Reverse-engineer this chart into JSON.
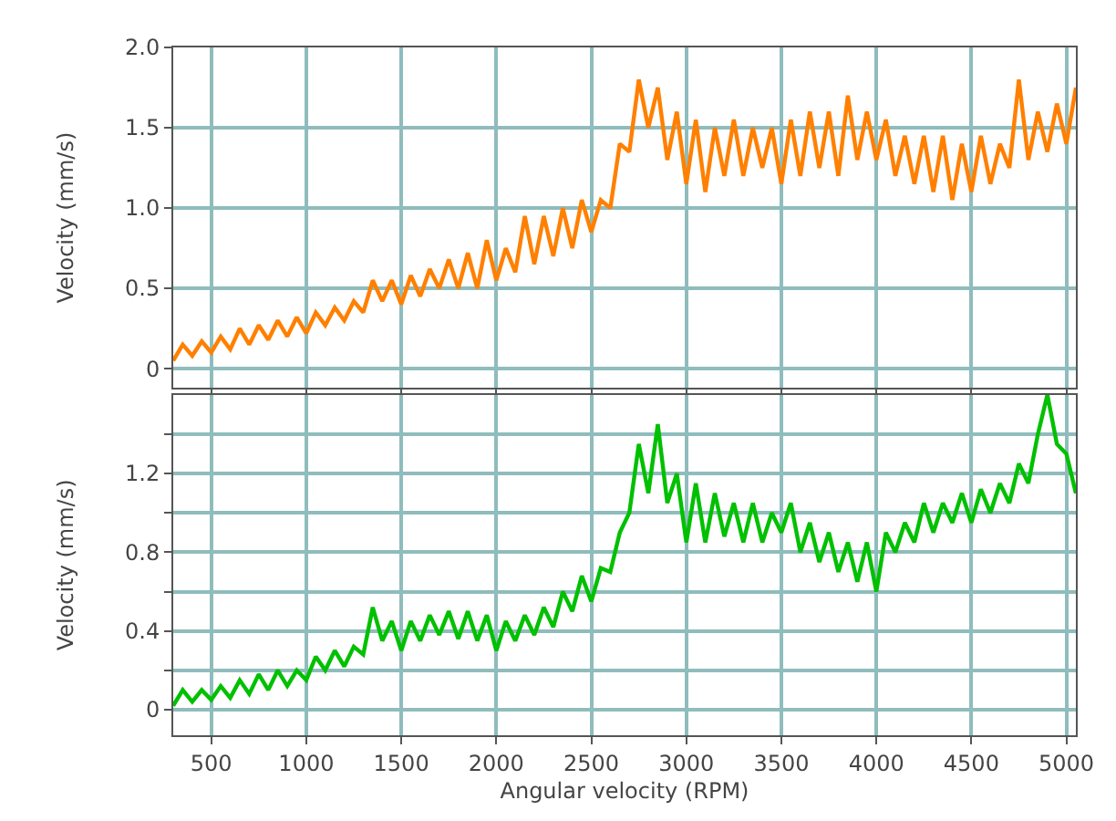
{
  "chart_data": [
    {
      "type": "line",
      "ylabel": "Velocity (mm/s)",
      "tick_labels": "y",
      "grid": true,
      "xlim": [
        300,
        5050
      ],
      "xticks": [
        500,
        1000,
        1500,
        2000,
        2500,
        3000,
        3500,
        4000,
        4500,
        5000
      ],
      "ylim": [
        -0.12,
        2.0
      ],
      "yticks": [
        0,
        0.5,
        {
          "value": 1.0,
          "label": "1.0"
        },
        1.5,
        {
          "value": 2.0,
          "label": "2.0"
        }
      ],
      "x": [
        300,
        350,
        400,
        450,
        500,
        550,
        600,
        650,
        700,
        750,
        800,
        850,
        900,
        950,
        1000,
        1050,
        1100,
        1150,
        1200,
        1250,
        1300,
        1350,
        1400,
        1450,
        1500,
        1550,
        1600,
        1650,
        1700,
        1750,
        1800,
        1850,
        1900,
        1950,
        2000,
        2050,
        2100,
        2150,
        2200,
        2250,
        2300,
        2350,
        2400,
        2450,
        2500,
        2550,
        2600,
        2650,
        2700,
        2750,
        2800,
        2850,
        2900,
        2950,
        3000,
        3050,
        3100,
        3150,
        3200,
        3250,
        3300,
        3350,
        3400,
        3450,
        3500,
        3550,
        3600,
        3650,
        3700,
        3750,
        3800,
        3850,
        3900,
        3950,
        4000,
        4050,
        4100,
        4150,
        4200,
        4250,
        4300,
        4350,
        4400,
        4450,
        4500,
        4550,
        4600,
        4650,
        4700,
        4750,
        4800,
        4850,
        4900,
        4950,
        5000,
        5050
      ],
      "series": [
        {
          "color": "#ff8000",
          "values": [
            0.05,
            0.15,
            0.08,
            0.17,
            0.1,
            0.2,
            0.12,
            0.25,
            0.15,
            0.27,
            0.18,
            0.3,
            0.2,
            0.32,
            0.22,
            0.35,
            0.27,
            0.38,
            0.3,
            0.42,
            0.35,
            0.55,
            0.42,
            0.55,
            0.4,
            0.58,
            0.45,
            0.62,
            0.5,
            0.68,
            0.5,
            0.72,
            0.5,
            0.8,
            0.55,
            0.75,
            0.6,
            0.95,
            0.65,
            0.95,
            0.7,
            1.0,
            0.75,
            1.05,
            0.85,
            1.05,
            1.0,
            1.4,
            1.35,
            1.8,
            1.5,
            1.75,
            1.3,
            1.6,
            1.15,
            1.55,
            1.1,
            1.5,
            1.2,
            1.55,
            1.2,
            1.5,
            1.25,
            1.5,
            1.15,
            1.55,
            1.2,
            1.6,
            1.25,
            1.6,
            1.2,
            1.7,
            1.3,
            1.6,
            1.3,
            1.55,
            1.2,
            1.45,
            1.15,
            1.45,
            1.1,
            1.45,
            1.05,
            1.4,
            1.1,
            1.45,
            1.15,
            1.4,
            1.25,
            1.8,
            1.3,
            1.6,
            1.35,
            1.65,
            1.4,
            1.75
          ]
        }
      ]
    },
    {
      "type": "line",
      "ylabel": "Velocity (mm/s)",
      "xlabel": "Angular velocity (RPM)",
      "grid": true,
      "xlim": [
        300,
        5050
      ],
      "xticks": [
        500,
        1000,
        1500,
        2000,
        2500,
        3000,
        3500,
        4000,
        4500,
        5000
      ],
      "ylim": [
        -0.13,
        1.6
      ],
      "yticks": [
        0,
        {
          "value": 0.2,
          "label": null
        },
        0.4,
        {
          "value": 0.6,
          "label": null
        },
        0.8,
        {
          "value": 1.0,
          "label": null
        },
        1.2,
        {
          "value": 1.4,
          "label": null
        }
      ],
      "x": [
        300,
        350,
        400,
        450,
        500,
        550,
        600,
        650,
        700,
        750,
        800,
        850,
        900,
        950,
        1000,
        1050,
        1100,
        1150,
        1200,
        1250,
        1300,
        1350,
        1400,
        1450,
        1500,
        1550,
        1600,
        1650,
        1700,
        1750,
        1800,
        1850,
        1900,
        1950,
        2000,
        2050,
        2100,
        2150,
        2200,
        2250,
        2300,
        2350,
        2400,
        2450,
        2500,
        2550,
        2600,
        2650,
        2700,
        2750,
        2800,
        2850,
        2900,
        2950,
        3000,
        3050,
        3100,
        3150,
        3200,
        3250,
        3300,
        3350,
        3400,
        3450,
        3500,
        3550,
        3600,
        3650,
        3700,
        3750,
        3800,
        3850,
        3900,
        3950,
        4000,
        4050,
        4100,
        4150,
        4200,
        4250,
        4300,
        4350,
        4400,
        4450,
        4500,
        4550,
        4600,
        4650,
        4700,
        4750,
        4800,
        4850,
        4900,
        4950,
        5000,
        5050
      ],
      "series": [
        {
          "color": "#00c000",
          "values": [
            0.02,
            0.1,
            0.04,
            0.1,
            0.05,
            0.12,
            0.06,
            0.15,
            0.08,
            0.18,
            0.1,
            0.2,
            0.12,
            0.2,
            0.15,
            0.27,
            0.2,
            0.3,
            0.22,
            0.32,
            0.28,
            0.52,
            0.35,
            0.45,
            0.3,
            0.45,
            0.35,
            0.48,
            0.38,
            0.5,
            0.36,
            0.5,
            0.35,
            0.48,
            0.3,
            0.45,
            0.35,
            0.48,
            0.38,
            0.52,
            0.42,
            0.6,
            0.5,
            0.68,
            0.55,
            0.72,
            0.7,
            0.9,
            1.0,
            1.35,
            1.1,
            1.45,
            1.05,
            1.2,
            0.85,
            1.15,
            0.85,
            1.1,
            0.88,
            1.05,
            0.85,
            1.05,
            0.85,
            1.0,
            0.9,
            1.05,
            0.8,
            0.95,
            0.75,
            0.9,
            0.7,
            0.85,
            0.65,
            0.85,
            0.6,
            0.9,
            0.8,
            0.95,
            0.85,
            1.05,
            0.9,
            1.05,
            0.95,
            1.1,
            0.95,
            1.12,
            1.0,
            1.15,
            1.05,
            1.25,
            1.15,
            1.4,
            1.6,
            1.35,
            1.3,
            1.1
          ]
        }
      ]
    }
  ]
}
